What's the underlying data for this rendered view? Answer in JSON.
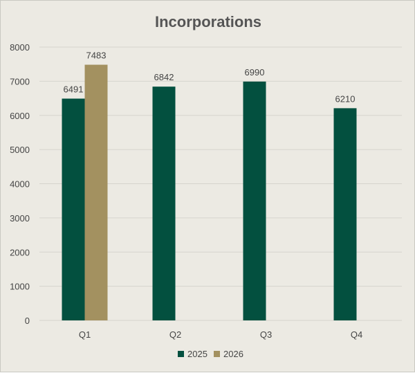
{
  "chart_data": {
    "type": "bar",
    "title": "Incorporations",
    "categories": [
      "Q1",
      "Q2",
      "Q3",
      "Q4"
    ],
    "series": [
      {
        "name": "2025",
        "color": "#03503f",
        "values": [
          6491,
          6842,
          6990,
          6210
        ]
      },
      {
        "name": "2026",
        "color": "#a39160",
        "values": [
          7483,
          null,
          null,
          null
        ]
      }
    ],
    "ylim": [
      0,
      8000
    ],
    "yticks": [
      0,
      1000,
      2000,
      3000,
      4000,
      5000,
      6000,
      7000,
      8000
    ],
    "grid": true,
    "legend": "bottom",
    "data_labels": true
  },
  "colors": {
    "background": "#eceae3",
    "gridline": "#d6d4cd",
    "text": "#444444"
  }
}
